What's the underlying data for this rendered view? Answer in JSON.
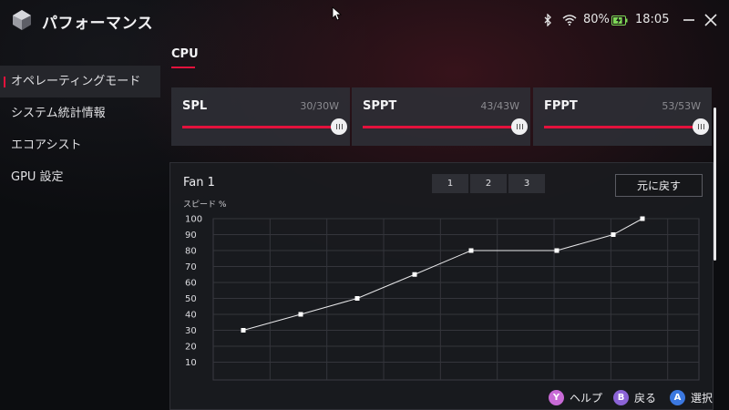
{
  "app": {
    "title": "パフォーマンス"
  },
  "status": {
    "battery_percent": "80%",
    "time": "18:05"
  },
  "sidebar": {
    "items": [
      {
        "label": "オペレーティングモード",
        "active": true
      },
      {
        "label": "システム統計情報",
        "active": false
      },
      {
        "label": "エコアシスト",
        "active": false
      },
      {
        "label": "GPU 設定",
        "active": false
      }
    ]
  },
  "cpu": {
    "section_label": "CPU",
    "sliders": [
      {
        "name": "SPL",
        "value_text": "30/30W",
        "value": 30,
        "max": 30
      },
      {
        "name": "SPPT",
        "value_text": "43/43W",
        "value": 43,
        "max": 43
      },
      {
        "name": "FPPT",
        "value_text": "53/53W",
        "value": 53,
        "max": 53
      }
    ]
  },
  "fan": {
    "title": "Fan 1",
    "profile_tabs": [
      "1",
      "2",
      "3"
    ],
    "reset_label": "元に戻す",
    "y_axis_title": "スピード %"
  },
  "chart_data": {
    "type": "line",
    "y_ticks": [
      100,
      90,
      80,
      70,
      60,
      50,
      40,
      30,
      20,
      10
    ],
    "ylim": [
      0,
      100
    ],
    "x_ticks_visible": false,
    "grid": true,
    "series": [
      {
        "values": [
          30,
          40,
          50,
          65,
          80,
          80,
          90,
          100
        ]
      }
    ]
  },
  "footer": {
    "hints": [
      {
        "key": "Y",
        "label": "ヘルプ",
        "color": "#c86ad6"
      },
      {
        "key": "B",
        "label": "戻る",
        "color": "#8b63d6"
      },
      {
        "key": "A",
        "label": "選択",
        "color": "#3b78e0"
      }
    ]
  },
  "theme": {
    "accent": "#e3123c"
  },
  "icons": [
    "app-logo",
    "cursor-icon",
    "bluetooth-icon",
    "wifi-icon",
    "battery-icon",
    "minimize-icon",
    "close-icon"
  ]
}
